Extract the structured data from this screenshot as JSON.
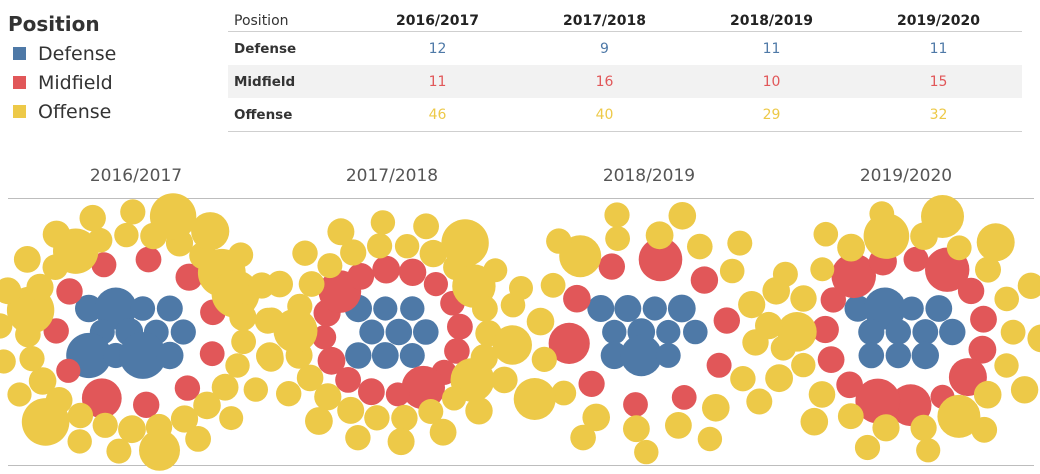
{
  "legend": {
    "title": "Position",
    "items": [
      {
        "label": "Defense",
        "color": "#4e79a7"
      },
      {
        "label": "Midfield",
        "color": "#e15759"
      },
      {
        "label": "Offense",
        "color": "#edc948"
      }
    ]
  },
  "table": {
    "corner_label": "Position",
    "seasons": [
      "2016/2017",
      "2017/2018",
      "2018/2019",
      "2019/2020"
    ],
    "rows": [
      {
        "label": "Defense",
        "values": [
          "12",
          "9",
          "11",
          "11"
        ],
        "color": "#4e79a7"
      },
      {
        "label": "Midfield",
        "values": [
          "11",
          "16",
          "10",
          "15"
        ],
        "color": "#e15759"
      },
      {
        "label": "Offense",
        "values": [
          "46",
          "40",
          "29",
          "32"
        ],
        "color": "#edc948"
      }
    ]
  },
  "chart_data": {
    "type": "packed-bubble",
    "color_legend": "Position",
    "categories": [
      "Defense",
      "Midfield",
      "Offense"
    ],
    "colors": {
      "Defense": "#4e79a7",
      "Midfield": "#e15759",
      "Offense": "#edc948"
    },
    "panels": [
      {
        "season": "2016/2017",
        "counts": {
          "Defense": 12,
          "Midfield": 11,
          "Offense": 46
        }
      },
      {
        "season": "2017/2018",
        "counts": {
          "Defense": 9,
          "Midfield": 16,
          "Offense": 40
        }
      },
      {
        "season": "2018/2019",
        "counts": {
          "Defense": 11,
          "Midfield": 10,
          "Offense": 29
        }
      },
      {
        "season": "2019/2020",
        "counts": {
          "Defense": 11,
          "Midfield": 15,
          "Offense": 32
        }
      }
    ]
  }
}
